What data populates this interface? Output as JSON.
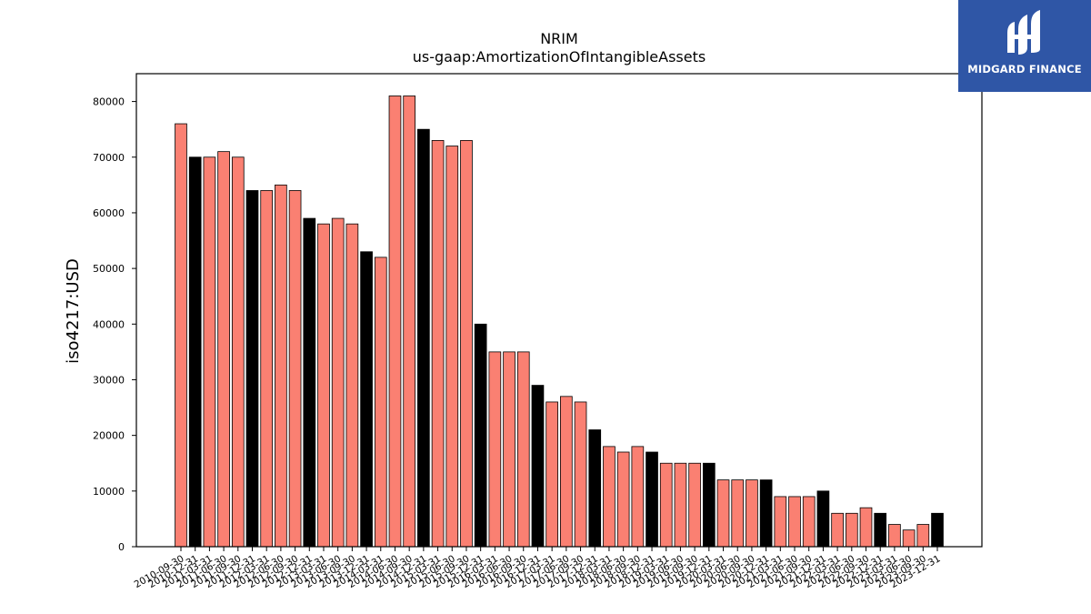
{
  "brand": {
    "name": "MIDGARD FINANCE",
    "bg_color": "#2f56a6",
    "icon": "midgard-logo-icon"
  },
  "chart_data": {
    "type": "bar",
    "title": "NRIM",
    "subtitle": "us-gaap:AmortizationOfIntangibleAssets",
    "xlabel": "",
    "ylabel": "iso4217:USD",
    "ylim": [
      0,
      85000
    ],
    "yticks": [
      0,
      10000,
      20000,
      30000,
      40000,
      50000,
      60000,
      70000,
      80000
    ],
    "grid": false,
    "colors": {
      "quarterly": "#fa8072",
      "year_end": "#000000"
    },
    "categories": [
      "2010-09-30",
      "2010-12-31",
      "2011-03-31",
      "2011-06-30",
      "2011-09-30",
      "2011-12-31",
      "2012-03-31",
      "2012-06-30",
      "2012-09-30",
      "2012-12-31",
      "2013-03-31",
      "2013-06-30",
      "2013-09-30",
      "2013-12-31",
      "2014-03-31",
      "2014-06-30",
      "2014-09-30",
      "2014-12-31",
      "2015-03-31",
      "2015-06-30",
      "2015-09-30",
      "2015-12-31",
      "2016-03-31",
      "2016-06-30",
      "2016-09-30",
      "2016-12-31",
      "2017-03-31",
      "2017-06-30",
      "2017-09-30",
      "2017-12-31",
      "2018-03-31",
      "2018-06-30",
      "2018-09-30",
      "2018-12-31",
      "2019-03-31",
      "2019-06-30",
      "2019-09-30",
      "2019-12-31",
      "2020-03-31",
      "2020-06-30",
      "2020-09-30",
      "2020-12-31",
      "2021-03-31",
      "2021-06-30",
      "2021-09-30",
      "2021-12-31",
      "2022-03-31",
      "2022-06-30",
      "2022-09-30",
      "2022-12-31",
      "2023-03-31",
      "2023-06-30",
      "2023-09-30",
      "2023-12-31"
    ],
    "values": [
      76000,
      70000,
      70000,
      71000,
      70000,
      64000,
      64000,
      65000,
      64000,
      59000,
      58000,
      59000,
      58000,
      53000,
      52000,
      81000,
      81000,
      75000,
      73000,
      72000,
      73000,
      40000,
      35000,
      35000,
      35000,
      29000,
      26000,
      27000,
      26000,
      21000,
      18000,
      17000,
      18000,
      17000,
      15000,
      15000,
      15000,
      15000,
      12000,
      12000,
      12000,
      12000,
      9000,
      9000,
      9000,
      10000,
      6000,
      6000,
      7000,
      6000,
      4000,
      3000,
      4000,
      6000
    ]
  }
}
